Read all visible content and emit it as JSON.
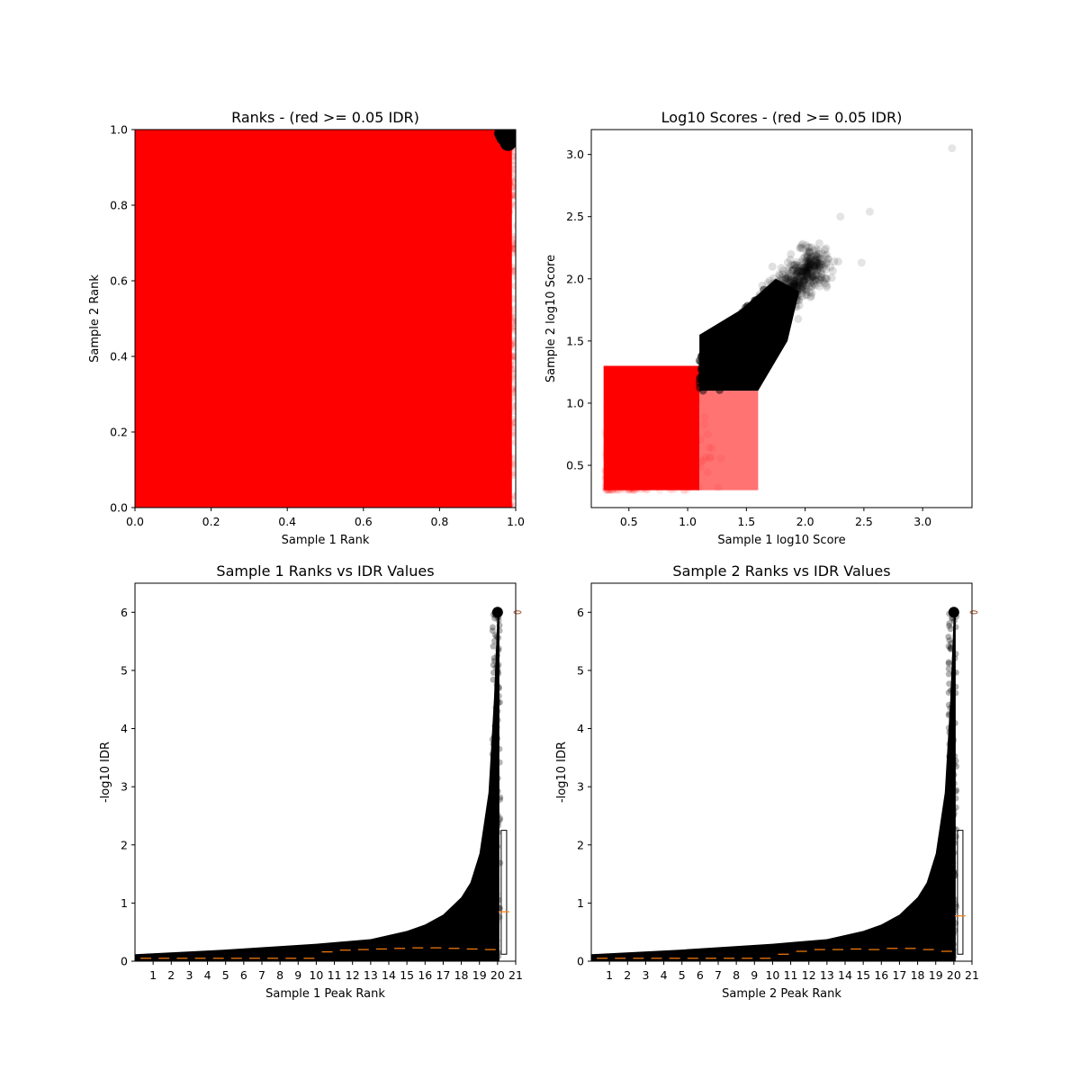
{
  "chart_data": [
    {
      "type": "scatter",
      "title": "Ranks - (red >= 0.05 IDR)",
      "xlabel": "Sample 1 Rank",
      "ylabel": "Sample 2 Rank",
      "xlim": [
        0,
        1
      ],
      "ylim": [
        0,
        1
      ],
      "xticks": [
        "0.0",
        "0.2",
        "0.4",
        "0.6",
        "0.8",
        "1.0"
      ],
      "yticks": [
        "0.0",
        "0.2",
        "0.4",
        "0.6",
        "0.8",
        "1.0"
      ],
      "grid": false,
      "legend": "none",
      "series": [
        {
          "color": "#ff0000",
          "region": {
            "x": [
              0.0,
              0.99
            ],
            "y": [
              0.0,
              1.0
            ]
          },
          "description_values": []
        },
        {
          "color": "#000000",
          "points": [
            [
              0.97,
              0.98
            ],
            [
              0.98,
              0.965
            ],
            [
              0.99,
              0.985
            ],
            [
              0.965,
              0.99
            ],
            [
              0.985,
              0.97
            ]
          ]
        }
      ]
    },
    {
      "type": "scatter",
      "title": "Log10 Scores - (red >= 0.05 IDR)",
      "xlabel": "Sample 1 log10 Score",
      "ylabel": "Sample 2 log10 Score",
      "xlim": [
        0.18,
        3.42
      ],
      "ylim": [
        0.16,
        3.2
      ],
      "xticks": [
        "0.5",
        "1.0",
        "1.5",
        "2.0",
        "2.5",
        "3.0"
      ],
      "yticks": [
        "0.5",
        "1.0",
        "1.5",
        "2.0",
        "2.5",
        "3.0"
      ],
      "grid": false,
      "legend": "none",
      "series": [
        {
          "color": "#ff0000",
          "core": {
            "x": [
              0.3,
              1.1
            ],
            "y": [
              0.3,
              1.3
            ]
          },
          "tail_x": [
            1.1,
            1.6
          ],
          "tail_y": [
            0.3,
            1.1
          ]
        },
        {
          "color": "#000000",
          "core": {
            "x": [
              1.1,
              2.0
            ],
            "y": [
              1.1,
              2.0
            ]
          },
          "outliers": [
            [
              3.25,
              3.05
            ],
            [
              2.55,
              2.54
            ],
            [
              2.3,
              2.5
            ],
            [
              2.48,
              2.13
            ]
          ]
        }
      ]
    },
    {
      "type": "scatter",
      "title": "Sample 1 Ranks vs IDR Values",
      "xlabel": "Sample 1 Peak Rank",
      "ylabel": "-log10 IDR",
      "xlim": [
        0,
        21
      ],
      "ylim": [
        0,
        6.5
      ],
      "xticks": [
        "1",
        "2",
        "3",
        "4",
        "5",
        "6",
        "7",
        "8",
        "9",
        "10",
        "11",
        "12",
        "13",
        "14",
        "15",
        "16",
        "17",
        "18",
        "19",
        "20",
        "21"
      ],
      "yticks": [
        "0",
        "1",
        "2",
        "3",
        "4",
        "5",
        "6"
      ],
      "grid": false,
      "legend": "none",
      "curve": {
        "x": [
          0,
          5,
          10,
          13,
          15,
          16,
          17,
          18,
          18.5,
          19,
          19.5,
          19.8,
          20
        ],
        "y": [
          0.12,
          0.2,
          0.3,
          0.38,
          0.52,
          0.63,
          0.8,
          1.1,
          1.35,
          1.85,
          2.9,
          4.5,
          6.0
        ]
      },
      "medians": [
        0.05,
        0.05,
        0.05,
        0.05,
        0.05,
        0.05,
        0.05,
        0.05,
        0.05,
        0.05,
        0.16,
        0.19,
        0.2,
        0.21,
        0.22,
        0.23,
        0.23,
        0.22,
        0.21,
        0.2,
        0.85
      ],
      "whisker_box": {
        "x": 20.2,
        "low": 0.12,
        "high": 2.25,
        "median": 0.85
      },
      "outlier_y": 6.0
    },
    {
      "type": "scatter",
      "title": "Sample 2 Ranks vs IDR Values",
      "xlabel": "Sample 2 Peak Rank",
      "ylabel": "-log10 IDR",
      "xlim": [
        0,
        21
      ],
      "ylim": [
        0,
        6.5
      ],
      "xticks": [
        "1",
        "2",
        "3",
        "4",
        "5",
        "6",
        "7",
        "8",
        "9",
        "10",
        "11",
        "12",
        "13",
        "14",
        "15",
        "16",
        "17",
        "18",
        "19",
        "20",
        "21"
      ],
      "yticks": [
        "0",
        "1",
        "2",
        "3",
        "4",
        "5",
        "6"
      ],
      "grid": false,
      "legend": "none",
      "curve": {
        "x": [
          0,
          5,
          10,
          13,
          15,
          16,
          17,
          18,
          18.5,
          19,
          19.5,
          19.8,
          20
        ],
        "y": [
          0.12,
          0.2,
          0.3,
          0.38,
          0.52,
          0.63,
          0.8,
          1.1,
          1.35,
          1.85,
          2.9,
          4.5,
          6.0
        ]
      },
      "medians": [
        0.05,
        0.05,
        0.05,
        0.05,
        0.05,
        0.05,
        0.05,
        0.05,
        0.05,
        0.05,
        0.12,
        0.17,
        0.2,
        0.2,
        0.21,
        0.2,
        0.22,
        0.22,
        0.2,
        0.17,
        0.78
      ],
      "whisker_box": {
        "x": 20.2,
        "low": 0.12,
        "high": 2.25,
        "median": 0.78
      },
      "outlier_y": 6.0
    }
  ]
}
